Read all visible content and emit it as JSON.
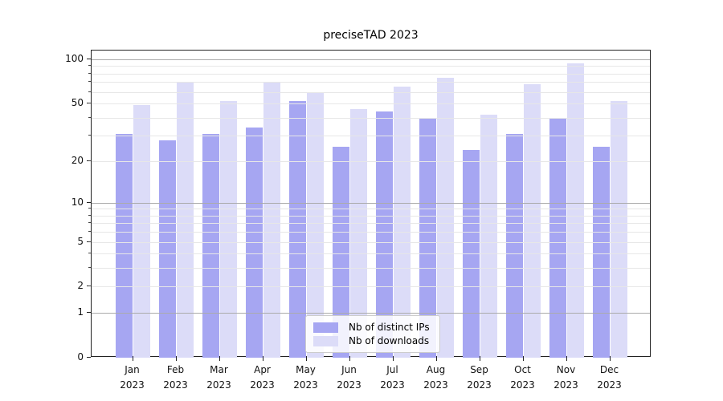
{
  "chart_data": {
    "type": "bar",
    "title": "preciseTAD 2023",
    "scale": "log1p",
    "grid": true,
    "x_year": "2023",
    "categories": [
      "Jan",
      "Feb",
      "Mar",
      "Apr",
      "May",
      "Jun",
      "Jul",
      "Aug",
      "Sep",
      "Oct",
      "Nov",
      "Dec"
    ],
    "series": [
      {
        "name": "Nb of distinct IPs",
        "color": "#a6a6f2",
        "values": [
          31,
          28,
          31,
          34,
          52,
          25,
          44,
          40,
          24,
          31,
          40,
          25
        ]
      },
      {
        "name": "Nb of downloads",
        "color": "#dcdcf8",
        "values": [
          49,
          70,
          52,
          70,
          59,
          46,
          65,
          75,
          42,
          68,
          94,
          52
        ]
      }
    ],
    "y_ticks": [
      100,
      50,
      20,
      10,
      5,
      2,
      1,
      0
    ],
    "y_tick_labels": [
      "100",
      "50",
      "20",
      "10",
      "5",
      "2",
      "1",
      "0"
    ],
    "y_major_gridlines": [
      1,
      10,
      100
    ],
    "y_minor_gridlines": [
      2,
      3,
      4,
      5,
      6,
      7,
      8,
      9,
      20,
      30,
      40,
      50,
      60,
      70,
      80,
      90
    ],
    "ylim": [
      0,
      115
    ],
    "legend_position": "lower center",
    "colors": {
      "minor_grid": "#e7e7e7",
      "major_grid": "#ababab",
      "axis": "#222222",
      "text": "#111111",
      "legend_border": "#cccccc"
    }
  }
}
